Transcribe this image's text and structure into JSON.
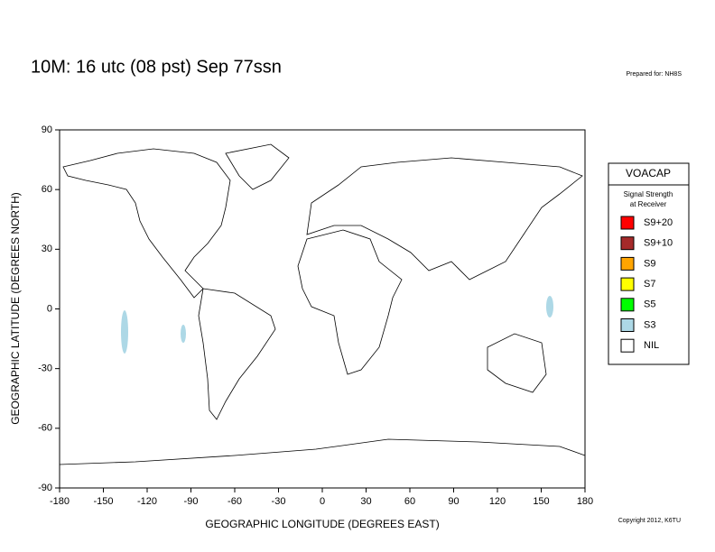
{
  "header": {
    "title": "10M:  16 utc (08 pst) Sep 77ssn",
    "prepared": "Prepared for: NH8S"
  },
  "chart_data": {
    "type": "map",
    "xlabel": "GEOGRAPHIC LONGITUDE (DEGREES EAST)",
    "ylabel": "GEOGRAPHIC LATITUDE (DEGREES NORTH)",
    "xlim": [
      -180,
      180
    ],
    "ylim": [
      -90,
      90
    ],
    "xticks": [
      -180,
      -150,
      -120,
      -90,
      -60,
      -30,
      0,
      30,
      60,
      90,
      120,
      150,
      180
    ],
    "yticks": [
      -90,
      -60,
      -30,
      0,
      30,
      60,
      90
    ]
  },
  "legend": {
    "title": "VOACAP",
    "subtitle": [
      "Signal Strength",
      "at Receiver"
    ],
    "items": [
      {
        "label": "S9+20",
        "color": "#ff0000"
      },
      {
        "label": "S9+10",
        "color": "#a52a2a"
      },
      {
        "label": "S9",
        "color": "#ffa500"
      },
      {
        "label": "S7",
        "color": "#ffff00"
      },
      {
        "label": "S5",
        "color": "#00ff00"
      },
      {
        "label": "S3",
        "color": "#add8e6"
      },
      {
        "label": "NIL",
        "color": "#ffffff"
      }
    ]
  },
  "footer": "Copyright 2012, K6TU"
}
